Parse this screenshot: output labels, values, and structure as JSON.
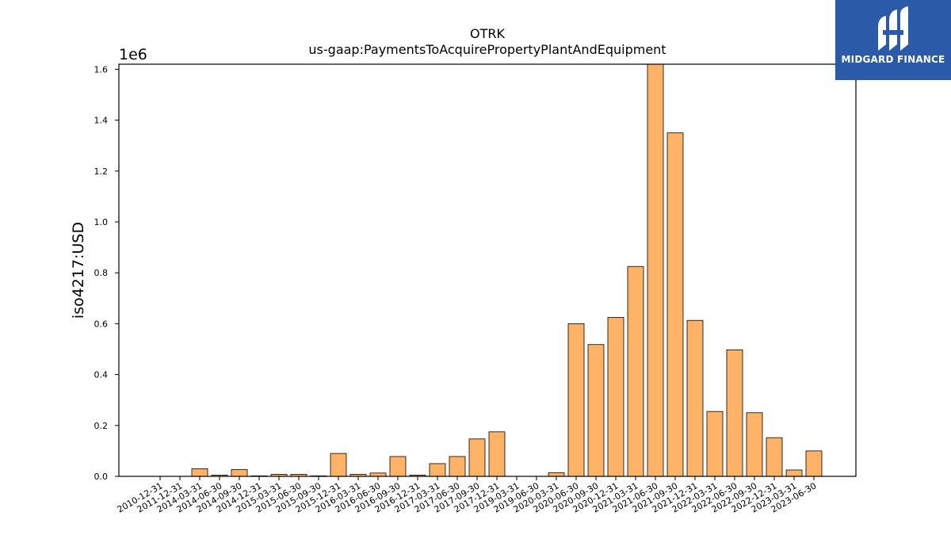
{
  "chart_data": {
    "type": "bar",
    "title": "OTRK",
    "subtitle": "us-gaap:PaymentsToAcquirePropertyPlantAndEquipment",
    "ylabel": "iso4217:USD",
    "xlabel": "",
    "y_multiplier_label": "1e6",
    "ylim": [
      0,
      1620000
    ],
    "yticks": [
      0,
      200000,
      400000,
      600000,
      800000,
      1000000,
      1200000,
      1400000,
      1600000
    ],
    "ytick_labels": [
      "0.0",
      "0.2",
      "0.4",
      "0.6",
      "0.8",
      "1.0",
      "1.2",
      "1.4",
      "1.6"
    ],
    "grid": false,
    "bar_color": "#ffb366",
    "bar_edge_color": "#000000",
    "categories": [
      "2010-12-31",
      "2011-12-31",
      "2014-03-31",
      "2014-06-30",
      "2014-09-30",
      "2014-12-31",
      "2015-03-31",
      "2015-06-30",
      "2015-09-30",
      "2015-12-31",
      "2016-03-31",
      "2016-06-30",
      "2016-09-30",
      "2016-12-31",
      "2017-03-31",
      "2017-06-30",
      "2017-09-30",
      "2017-12-31",
      "2019-03-31",
      "2019-06-30",
      "2020-03-31",
      "2020-06-30",
      "2020-09-30",
      "2020-12-31",
      "2021-03-31",
      "2021-06-30",
      "2021-09-30",
      "2021-12-31",
      "2022-03-31",
      "2022-06-30",
      "2022-09-30",
      "2022-12-31",
      "2023-03-31",
      "2023-06-30"
    ],
    "values": [
      0,
      0,
      30000,
      5000,
      27000,
      2000,
      8000,
      8000,
      2000,
      90000,
      8000,
      13000,
      78000,
      5000,
      50000,
      78000,
      147000,
      175000,
      0,
      0,
      14000,
      600000,
      518000,
      625000,
      825000,
      1620000,
      1350000,
      613000,
      255000,
      497000,
      250000,
      152000,
      25000,
      100000
    ]
  },
  "logo": {
    "text": "MIDGARD FINANCE",
    "background": "#2b5aa8"
  }
}
